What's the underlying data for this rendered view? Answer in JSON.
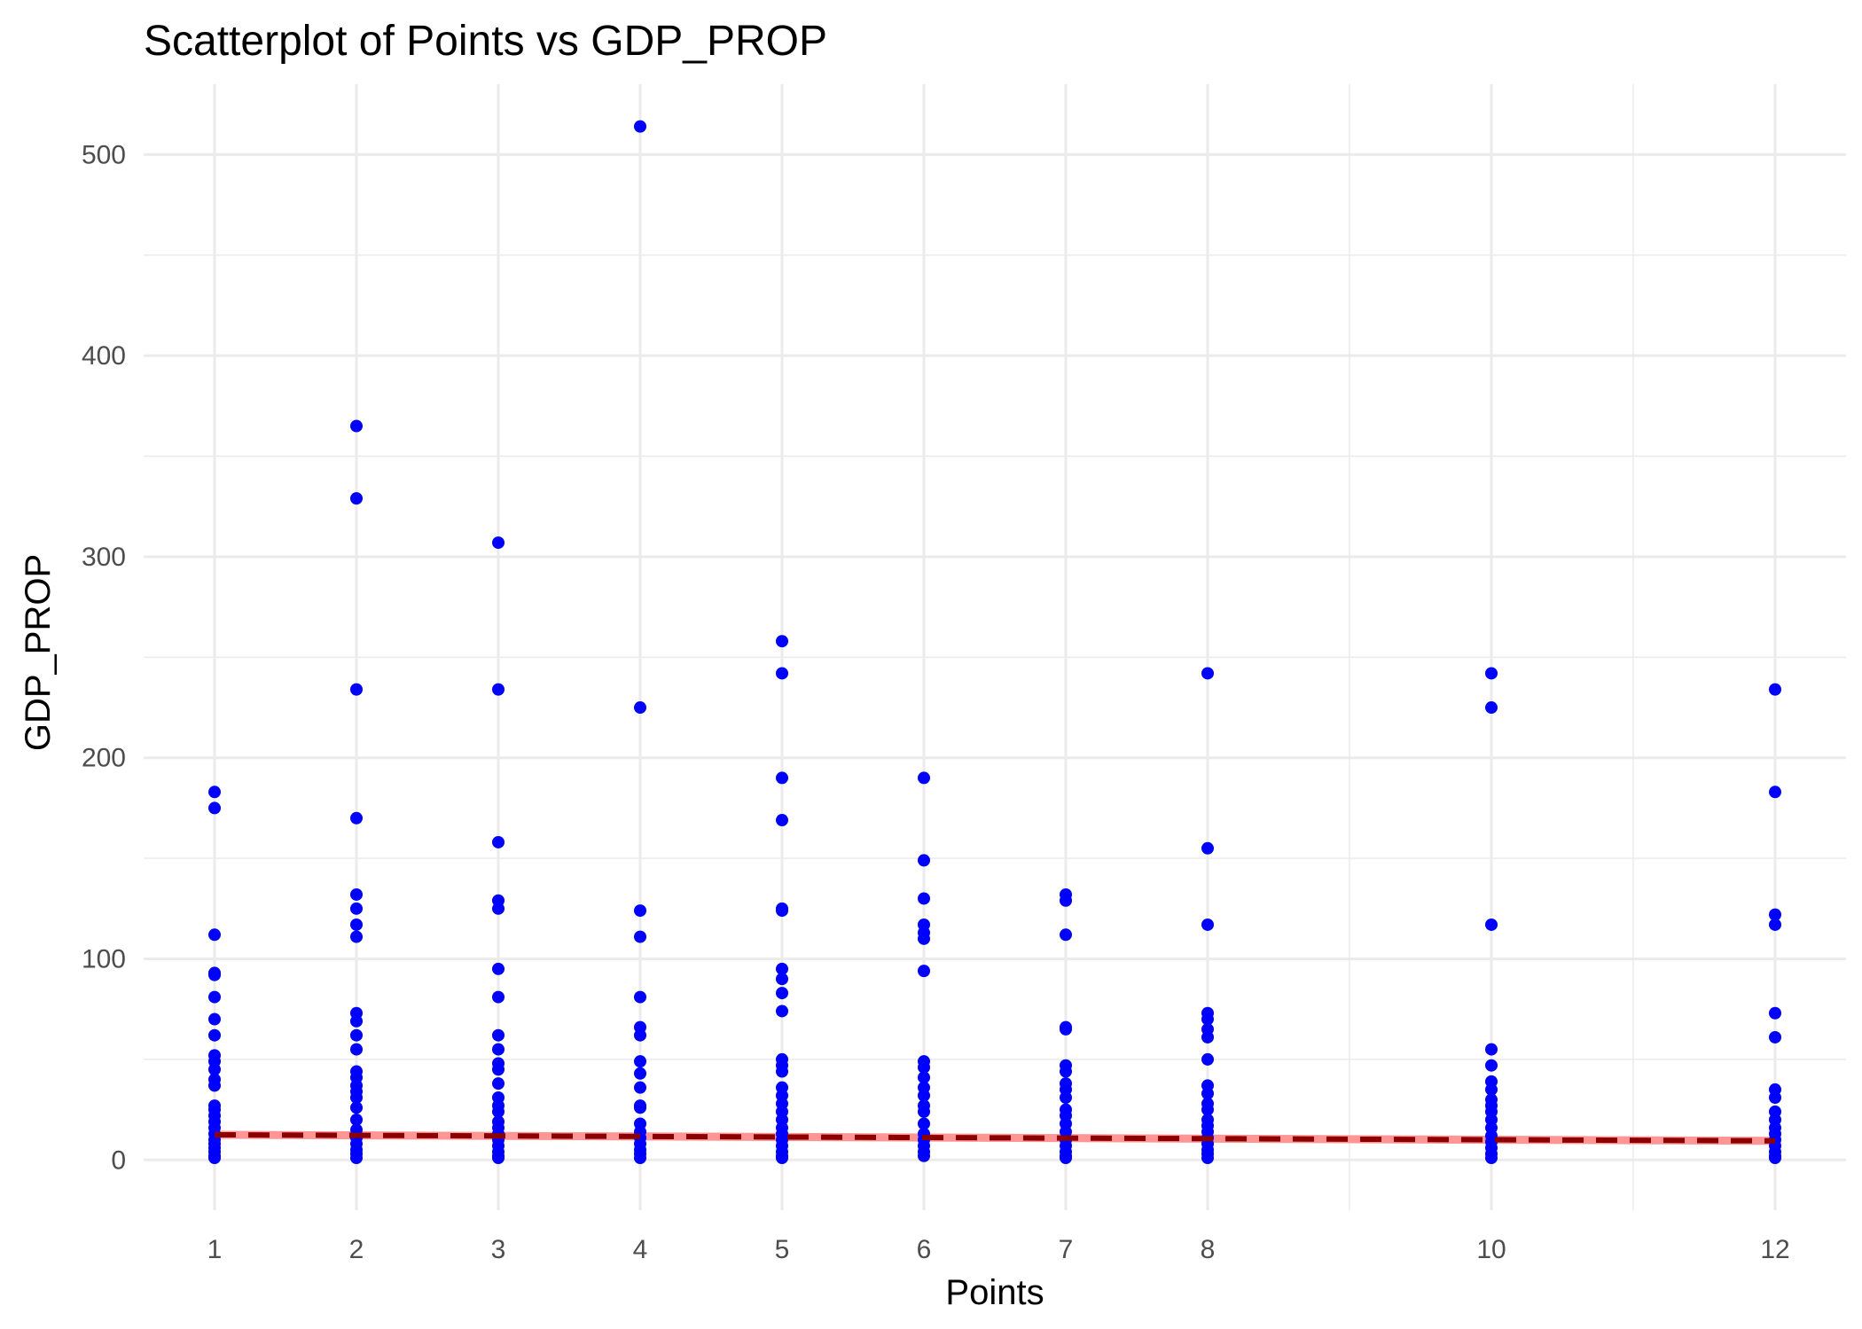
{
  "chart_data": {
    "type": "scatter",
    "title": "Scatterplot of Points vs  GDP_PROP",
    "xlabel": "Points",
    "ylabel": "GDP_PROP",
    "xlim": [
      0.5,
      12.5
    ],
    "ylim": [
      -25,
      535
    ],
    "x_ticks": [
      1,
      2,
      3,
      4,
      5,
      6,
      7,
      8,
      10,
      12
    ],
    "y_ticks": [
      0,
      100,
      200,
      300,
      400,
      500
    ],
    "grid": true,
    "colors": {
      "points": "#0000ff",
      "trend_line": "#8b0000",
      "trend_band": "#ff8a8a",
      "grid": "#ebebeb"
    },
    "series": [
      {
        "x": 1,
        "values": [
          183,
          175,
          112,
          93,
          92,
          81,
          70,
          62,
          52,
          49,
          45,
          40,
          37,
          27,
          25,
          22,
          19,
          16,
          13,
          10,
          8,
          6,
          4,
          2,
          1
        ]
      },
      {
        "x": 2,
        "values": [
          365,
          329,
          234,
          170,
          132,
          125,
          117,
          111,
          73,
          69,
          62,
          55,
          44,
          41,
          37,
          34,
          31,
          26,
          20,
          15,
          11,
          8,
          5,
          3,
          1
        ]
      },
      {
        "x": 3,
        "values": [
          307,
          234,
          158,
          129,
          125,
          95,
          81,
          62,
          55,
          48,
          45,
          38,
          31,
          27,
          24,
          19,
          16,
          13,
          10,
          7,
          4,
          2,
          1
        ]
      },
      {
        "x": 4,
        "values": [
          514,
          225,
          124,
          111,
          81,
          66,
          62,
          49,
          43,
          36,
          27,
          26,
          18,
          14,
          11,
          8,
          5,
          3,
          1
        ]
      },
      {
        "x": 5,
        "values": [
          258,
          242,
          190,
          169,
          125,
          124,
          95,
          90,
          83,
          74,
          50,
          47,
          44,
          36,
          32,
          28,
          24,
          20,
          16,
          13,
          10,
          7,
          4,
          2,
          1
        ]
      },
      {
        "x": 6,
        "values": [
          190,
          149,
          130,
          117,
          113,
          110,
          94,
          49,
          46,
          41,
          36,
          32,
          27,
          24,
          18,
          13,
          10,
          7,
          4,
          2
        ]
      },
      {
        "x": 7,
        "values": [
          132,
          129,
          112,
          66,
          65,
          47,
          44,
          38,
          35,
          31,
          25,
          22,
          18,
          14,
          10,
          7,
          4,
          2,
          1
        ]
      },
      {
        "x": 8,
        "values": [
          242,
          155,
          117,
          73,
          70,
          65,
          61,
          50,
          37,
          33,
          28,
          25,
          20,
          17,
          14,
          11,
          8,
          5,
          3,
          1
        ]
      },
      {
        "x": 10,
        "values": [
          242,
          225,
          117,
          55,
          47,
          39,
          35,
          30,
          27,
          24,
          20,
          16,
          12,
          9,
          6,
          3,
          1
        ]
      },
      {
        "x": 12,
        "values": [
          234,
          183,
          122,
          117,
          73,
          61,
          35,
          31,
          24,
          20,
          16,
          13,
          10,
          7,
          4,
          2,
          1
        ]
      }
    ],
    "trend": {
      "type": "linear fit (dashed) with confidence band",
      "x": [
        1,
        12
      ],
      "y": [
        12.5,
        9.5
      ],
      "band_halfwidth": 2
    }
  }
}
